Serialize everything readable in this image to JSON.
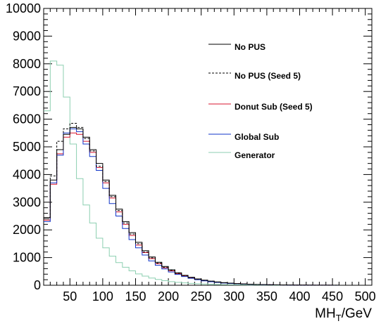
{
  "chart_data": {
    "type": "line",
    "style": "step-histogram",
    "xlabel_main": "MH",
    "xlabel_sub": "T",
    "xlabel_unit": "/GeV",
    "ylabel": "",
    "xlim": [
      10,
      510
    ],
    "ylim": [
      0,
      10000
    ],
    "x_ticks": [
      50,
      100,
      150,
      200,
      250,
      300,
      350,
      400,
      450,
      500
    ],
    "y_ticks": [
      0,
      1000,
      2000,
      3000,
      4000,
      5000,
      6000,
      7000,
      8000,
      9000,
      10000
    ],
    "bin_edges": [
      10,
      20,
      30,
      40,
      50,
      60,
      70,
      80,
      90,
      100,
      110,
      120,
      130,
      140,
      150,
      160,
      170,
      180,
      190,
      200,
      210,
      220,
      230,
      240,
      250,
      260,
      270,
      280,
      290,
      300,
      310,
      320,
      330,
      340,
      350,
      360,
      370,
      380,
      390,
      400,
      410,
      420,
      430,
      440,
      450,
      460,
      470,
      480,
      490,
      500,
      510
    ],
    "legend_position": "top-right",
    "grid": false,
    "series": [
      {
        "name": "No PUS",
        "color": "#000000",
        "dash": "solid",
        "values": [
          2450,
          3800,
          4900,
          5450,
          5700,
          5650,
          5350,
          4900,
          4400,
          3800,
          3250,
          2750,
          2300,
          1900,
          1550,
          1250,
          1020,
          830,
          680,
          560,
          450,
          360,
          290,
          230,
          185,
          150,
          120,
          95,
          75,
          60,
          48,
          38,
          30,
          24,
          19,
          15,
          12,
          9,
          7,
          6,
          5,
          4,
          3,
          2,
          2,
          1,
          1,
          1,
          1,
          0
        ]
      },
      {
        "name": "No PUS (Seed 5)",
        "color": "#000000",
        "dash": "dashed",
        "values": [
          2400,
          3950,
          5200,
          5650,
          5850,
          5700,
          5300,
          4850,
          4300,
          3750,
          3200,
          2700,
          2250,
          1850,
          1500,
          1200,
          990,
          800,
          650,
          540,
          430,
          350,
          280,
          220,
          180,
          145,
          115,
          90,
          72,
          58,
          46,
          36,
          28,
          22,
          18,
          14,
          11,
          9,
          7,
          5,
          4,
          3,
          3,
          2,
          2,
          1,
          1,
          1,
          1,
          0
        ]
      },
      {
        "name": "Donut Sub (Seed 5)",
        "color": "#d8142c",
        "dash": "solid",
        "values": [
          2350,
          3650,
          4750,
          5350,
          5500,
          5450,
          5200,
          4800,
          4250,
          3700,
          3150,
          2650,
          2200,
          1800,
          1450,
          1180,
          960,
          780,
          630,
          520,
          420,
          340,
          270,
          215,
          175,
          140,
          112,
          88,
          70,
          56,
          44,
          35,
          27,
          21,
          17,
          13,
          10,
          8,
          6,
          5,
          4,
          3,
          2,
          2,
          1,
          1,
          1,
          1,
          0,
          0
        ]
      },
      {
        "name": "Global Sub",
        "color": "#1035c8",
        "dash": "solid",
        "values": [
          2300,
          3700,
          4700,
          5500,
          5650,
          5550,
          5100,
          4650,
          4150,
          3500,
          2950,
          2500,
          2050,
          1650,
          1350,
          1090,
          880,
          720,
          590,
          480,
          390,
          315,
          250,
          200,
          160,
          128,
          102,
          80,
          64,
          51,
          40,
          32,
          25,
          20,
          16,
          12,
          9,
          7,
          6,
          4,
          3,
          3,
          2,
          2,
          1,
          1,
          1,
          0,
          0,
          0
        ]
      },
      {
        "name": "Generator",
        "color": "#8ccfb0",
        "dash": "solid",
        "values": [
          6300,
          8100,
          7950,
          6800,
          5100,
          3850,
          2900,
          2250,
          1700,
          1350,
          1050,
          820,
          650,
          520,
          410,
          330,
          260,
          210,
          165,
          130,
          105,
          85,
          68,
          55,
          45,
          36,
          29,
          23,
          19,
          15,
          12,
          10,
          8,
          6,
          5,
          4,
          3,
          3,
          2,
          2,
          1,
          1,
          1,
          1,
          0,
          0,
          0,
          0,
          0,
          0
        ]
      }
    ]
  }
}
